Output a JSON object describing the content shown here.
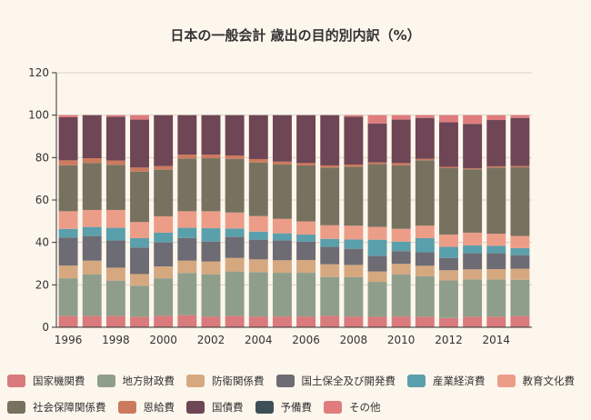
{
  "chart_data": {
    "type": "bar",
    "stacked": true,
    "title": "日本の一般会計 歳出の目的別内訳（%）",
    "xlabel": "",
    "ylabel": "",
    "ylim": [
      0,
      120
    ],
    "yticks": [
      0,
      20,
      40,
      60,
      80,
      100,
      120
    ],
    "xtick_labels": [
      "1996",
      "1998",
      "2000",
      "2002",
      "2004",
      "2006",
      "2008",
      "2010",
      "2012",
      "2014"
    ],
    "grid": true,
    "legend_position": "bottom",
    "categories": [
      "1996",
      "1997",
      "1998",
      "1999",
      "2000",
      "2001",
      "2002",
      "2003",
      "2004",
      "2005",
      "2006",
      "2007",
      "2008",
      "2009",
      "2010",
      "2011",
      "2012",
      "2013",
      "2014",
      "2015"
    ],
    "series": [
      {
        "name": "国家機関費",
        "color": "#d97a7c",
        "values": [
          5.3,
          5.3,
          5.3,
          5.0,
          5.4,
          5.7,
          5.1,
          5.3,
          5.1,
          5.1,
          5.1,
          5.4,
          5.1,
          4.9,
          5.1,
          5.0,
          4.4,
          5.0,
          5.0,
          5.3
        ]
      },
      {
        "name": "地方財政費",
        "color": "#8f9e8a",
        "values": [
          17.8,
          19.7,
          16.7,
          14.6,
          17.7,
          19.9,
          19.9,
          21.0,
          20.9,
          20.6,
          20.6,
          18.3,
          18.6,
          16.5,
          19.9,
          19.1,
          17.7,
          17.6,
          17.6,
          17.1
        ]
      },
      {
        "name": "防衛関係費",
        "color": "#d6a880",
        "values": [
          6.0,
          6.4,
          6.1,
          5.5,
          5.6,
          5.8,
          6.0,
          6.4,
          6.0,
          5.9,
          6.0,
          6.0,
          5.7,
          4.9,
          4.9,
          4.9,
          4.8,
          4.7,
          4.8,
          5.2
        ]
      },
      {
        "name": "国土保全及び開発費",
        "color": "#6d6b73",
        "values": [
          13.2,
          11.6,
          12.8,
          12.5,
          11.3,
          10.7,
          9.4,
          9.9,
          9.3,
          9.3,
          8.7,
          8.2,
          7.6,
          7.3,
          6.0,
          6.4,
          5.8,
          7.6,
          7.5,
          6.4
        ]
      },
      {
        "name": "産業経済費",
        "color": "#5a9fac",
        "values": [
          4.1,
          4.3,
          6.0,
          4.4,
          4.6,
          4.8,
          6.3,
          4.0,
          3.8,
          3.4,
          3.3,
          3.8,
          4.4,
          7.7,
          4.5,
          6.6,
          5.2,
          3.7,
          3.5,
          3.3
        ]
      },
      {
        "name": "教育文化費",
        "color": "#ec9d88",
        "values": [
          8.3,
          8.0,
          8.4,
          7.6,
          7.7,
          7.8,
          8.0,
          7.5,
          7.3,
          6.8,
          6.2,
          6.4,
          6.5,
          6.0,
          6.0,
          5.9,
          5.8,
          6.0,
          5.7,
          5.7
        ]
      },
      {
        "name": "社会保障関係費",
        "color": "#77725f",
        "values": [
          21.7,
          22.1,
          21.3,
          23.8,
          22.0,
          24.9,
          25.0,
          25.3,
          25.3,
          25.6,
          26.4,
          27.2,
          27.8,
          29.6,
          29.9,
          30.8,
          31.3,
          29.8,
          31.2,
          32.4
        ]
      },
      {
        "name": "恩給費",
        "color": "#cc7a5e",
        "values": [
          2.3,
          2.3,
          2.0,
          1.9,
          1.7,
          1.8,
          1.7,
          1.6,
          1.6,
          1.4,
          1.1,
          1.0,
          1.0,
          0.8,
          1.1,
          0.7,
          0.6,
          0.5,
          0.6,
          0.6
        ]
      },
      {
        "name": "国債費",
        "color": "#6e4655",
        "values": [
          20.3,
          20.3,
          20.7,
          22.6,
          24.0,
          18.6,
          18.6,
          19.0,
          20.7,
          21.9,
          22.6,
          23.7,
          22.6,
          18.4,
          20.5,
          19.3,
          21.1,
          21.0,
          21.8,
          22.7
        ]
      },
      {
        "name": "予備費",
        "color": "#3f4f57",
        "values": [
          0,
          0,
          0,
          0,
          0,
          0,
          0,
          0,
          0,
          0,
          0,
          0,
          0,
          0,
          0,
          0,
          0,
          0,
          0,
          0
        ]
      },
      {
        "name": "その他",
        "color": "#e07c7e",
        "values": [
          1.0,
          0,
          0.7,
          2.1,
          0,
          0,
          0,
          0,
          0,
          0,
          0,
          0,
          0.7,
          3.9,
          2.1,
          1.3,
          3.3,
          4.1,
          2.3,
          1.3
        ]
      }
    ]
  }
}
